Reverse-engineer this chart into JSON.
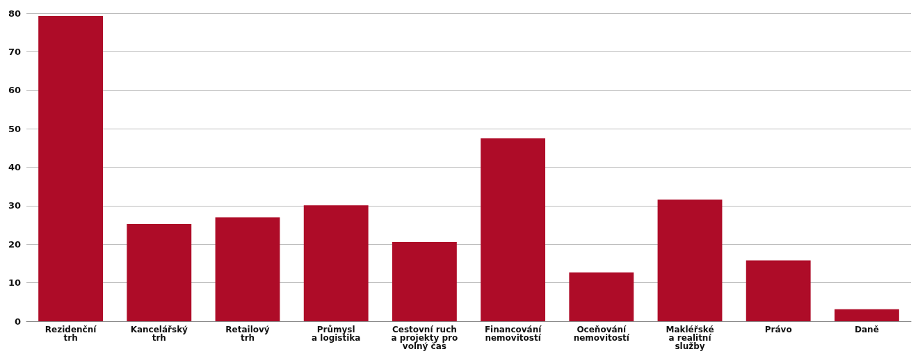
{
  "chart_data": {
    "type": "bar",
    "categories": [
      "Rezidenční\ntrh",
      "Kancelářský\ntrh",
      "Retailový\ntrh",
      "Průmysl\na logistika",
      "Cestovní ruch\na projekty pro\nvolný čas",
      "Financování\nnemovitostí",
      "Oceňování\nnemovitostí",
      "Makléřské\na realitní\nslužby",
      "Právo",
      "Daně"
    ],
    "values": [
      79.3,
      25.3,
      27.0,
      30.1,
      20.6,
      47.5,
      12.7,
      31.6,
      15.8,
      3.1
    ],
    "color": "#ae0c28",
    "ylim": [
      0,
      80
    ],
    "yticks": [
      0,
      10,
      20,
      30,
      40,
      50,
      60,
      70,
      80
    ],
    "grid": "y"
  }
}
